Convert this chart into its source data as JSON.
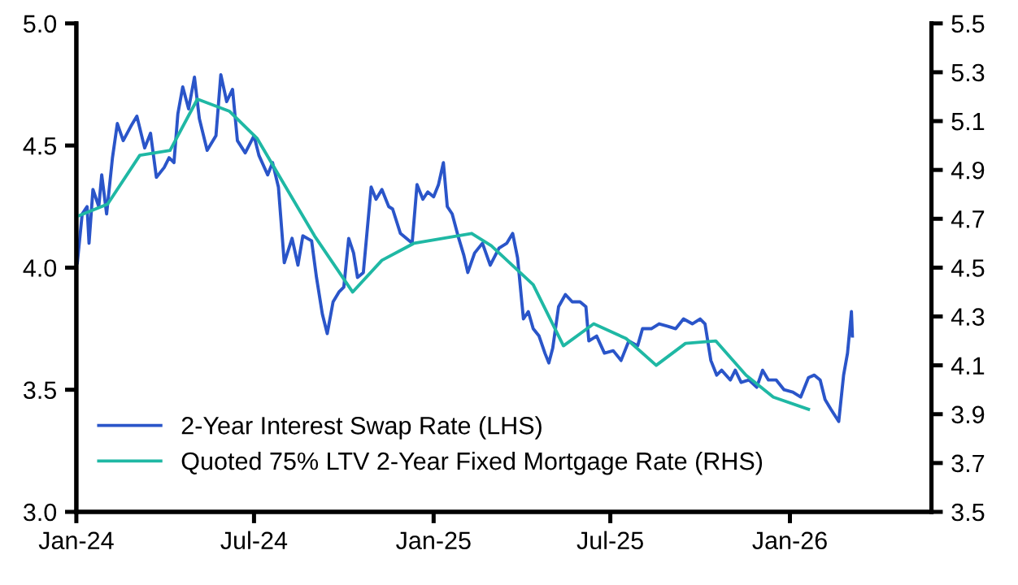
{
  "chart_data": {
    "type": "line",
    "xlim": [
      "2024-01-01",
      "2026-05-26"
    ],
    "xticks": [
      {
        "value": "2024-01-01",
        "label": "Jan-24"
      },
      {
        "value": "2024-07-01",
        "label": "Jul-24"
      },
      {
        "value": "2025-01-01",
        "label": "Jan-25"
      },
      {
        "value": "2025-07-01",
        "label": "Jul-25"
      },
      {
        "value": "2026-01-01",
        "label": "Jan-26"
      }
    ],
    "ylim": [
      3.0,
      5.0
    ],
    "yticks": [
      {
        "value": 3.0,
        "label": "3.0"
      },
      {
        "value": 3.5,
        "label": "3.5"
      },
      {
        "value": 4.0,
        "label": "4.0"
      },
      {
        "value": 4.5,
        "label": "4.5"
      },
      {
        "value": 5.0,
        "label": "5.0"
      }
    ],
    "y2lim": [
      3.5,
      5.5
    ],
    "y2ticks": [
      3.5,
      3.7,
      3.9,
      4.1,
      4.3,
      4.5,
      4.7,
      4.9,
      5.1,
      5.3,
      5.5
    ],
    "legend": "bottom left",
    "grid": false,
    "marker": "none",
    "line_style": "solid",
    "series": [
      {
        "name": "2-Year Interest Swap Rate (LHS)",
        "color": "#2a55c9",
        "x": [
          "2024-01-02",
          "2024-01-07",
          "2024-01-12",
          "2024-01-14",
          "2024-01-18",
          "2024-01-24",
          "2024-01-27",
          "2024-02-01",
          "2024-02-07",
          "2024-02-12",
          "2024-02-18",
          "2024-02-26",
          "2024-03-03",
          "2024-03-11",
          "2024-03-17",
          "2024-03-23",
          "2024-03-31",
          "2024-04-05",
          "2024-04-10",
          "2024-04-14",
          "2024-04-19",
          "2024-04-25",
          "2024-05-01",
          "2024-05-06",
          "2024-05-14",
          "2024-05-23",
          "2024-05-28",
          "2024-06-03",
          "2024-06-09",
          "2024-06-14",
          "2024-06-22",
          "2024-07-01",
          "2024-07-06",
          "2024-07-15",
          "2024-07-20",
          "2024-07-26",
          "2024-08-01",
          "2024-08-09",
          "2024-08-15",
          "2024-08-20",
          "2024-08-29",
          "2024-09-03",
          "2024-09-09",
          "2024-09-14",
          "2024-09-20",
          "2024-09-26",
          "2024-10-01",
          "2024-10-06",
          "2024-10-11",
          "2024-10-15",
          "2024-10-21",
          "2024-10-29",
          "2024-11-03",
          "2024-11-09",
          "2024-11-16",
          "2024-11-20",
          "2024-11-28",
          "2024-12-04",
          "2024-12-10",
          "2024-12-15",
          "2024-12-21",
          "2024-12-26",
          "2025-01-01",
          "2025-01-06",
          "2025-01-11",
          "2025-01-15",
          "2025-01-20",
          "2025-01-26",
          "2025-02-01",
          "2025-02-05",
          "2025-02-12",
          "2025-02-20",
          "2025-02-28",
          "2025-03-09",
          "2025-03-17",
          "2025-03-23",
          "2025-03-28",
          "2025-04-03",
          "2025-04-08",
          "2025-04-13",
          "2025-04-19",
          "2025-04-25",
          "2025-04-29",
          "2025-05-03",
          "2025-05-09",
          "2025-05-16",
          "2025-05-23",
          "2025-05-31",
          "2025-06-06",
          "2025-06-09",
          "2025-06-17",
          "2025-06-25",
          "2025-07-04",
          "2025-07-12",
          "2025-07-20",
          "2025-07-29",
          "2025-08-03",
          "2025-08-12",
          "2025-08-20",
          "2025-08-29",
          "2025-09-06",
          "2025-09-14",
          "2025-09-23",
          "2025-10-01",
          "2025-10-06",
          "2025-10-12",
          "2025-10-18",
          "2025-10-23",
          "2025-11-01",
          "2025-11-06",
          "2025-11-12",
          "2025-11-20",
          "2025-11-28",
          "2025-12-04",
          "2025-12-10",
          "2025-12-18",
          "2025-12-26",
          "2026-01-04",
          "2026-01-12",
          "2026-01-20",
          "2026-01-26",
          "2026-02-01",
          "2026-02-06",
          "2026-02-12",
          "2026-02-20",
          "2026-02-25",
          "2026-03-01",
          "2026-03-05",
          "2026-03-06"
        ],
        "values": [
          4.02,
          4.22,
          4.25,
          4.1,
          4.32,
          4.25,
          4.38,
          4.22,
          4.45,
          4.59,
          4.52,
          4.58,
          4.62,
          4.49,
          4.55,
          4.37,
          4.41,
          4.45,
          4.43,
          4.63,
          4.74,
          4.65,
          4.78,
          4.61,
          4.48,
          4.54,
          4.79,
          4.68,
          4.73,
          4.52,
          4.47,
          4.54,
          4.46,
          4.38,
          4.43,
          4.33,
          4.02,
          4.12,
          4.01,
          4.13,
          4.11,
          3.96,
          3.81,
          3.73,
          3.86,
          3.9,
          3.92,
          4.12,
          4.06,
          3.96,
          3.98,
          4.33,
          4.28,
          4.32,
          4.25,
          4.24,
          4.14,
          4.12,
          4.1,
          4.34,
          4.28,
          4.31,
          4.29,
          4.34,
          4.43,
          4.25,
          4.22,
          4.13,
          4.05,
          3.98,
          4.06,
          4.1,
          4.01,
          4.08,
          4.1,
          4.14,
          4.04,
          3.79,
          3.82,
          3.75,
          3.72,
          3.65,
          3.61,
          3.67,
          3.84,
          3.89,
          3.86,
          3.86,
          3.84,
          3.7,
          3.72,
          3.65,
          3.66,
          3.62,
          3.7,
          3.68,
          3.75,
          3.75,
          3.77,
          3.76,
          3.75,
          3.79,
          3.77,
          3.79,
          3.77,
          3.62,
          3.56,
          3.58,
          3.54,
          3.58,
          3.53,
          3.54,
          3.51,
          3.58,
          3.54,
          3.54,
          3.5,
          3.49,
          3.47,
          3.55,
          3.56,
          3.54,
          3.46,
          3.42,
          3.37,
          3.56,
          3.65,
          3.82,
          3.72
        ]
      },
      {
        "name": "Quoted 75% LTV 2-Year Fixed Mortgage Rate (RHS)",
        "color": "#1fb8a4",
        "axis": "y2",
        "x": [
          "2024-01-02",
          "2024-02-02",
          "2024-03-06",
          "2024-04-06",
          "2024-05-04",
          "2024-06-06",
          "2024-07-04",
          "2024-09-01",
          "2024-10-10",
          "2024-11-09",
          "2024-12-12",
          "2025-02-09",
          "2025-03-01",
          "2025-04-13",
          "2025-05-14",
          "2025-06-14",
          "2025-07-17",
          "2025-08-17",
          "2025-09-16",
          "2025-10-17",
          "2025-11-17",
          "2025-12-15",
          "2026-01-20"
        ],
        "values": [
          4.71,
          4.76,
          4.96,
          4.98,
          5.19,
          5.14,
          5.03,
          4.63,
          4.4,
          4.53,
          4.6,
          4.64,
          4.59,
          4.43,
          4.18,
          4.27,
          4.21,
          4.1,
          4.19,
          4.2,
          4.06,
          3.97,
          3.92
        ]
      }
    ]
  }
}
